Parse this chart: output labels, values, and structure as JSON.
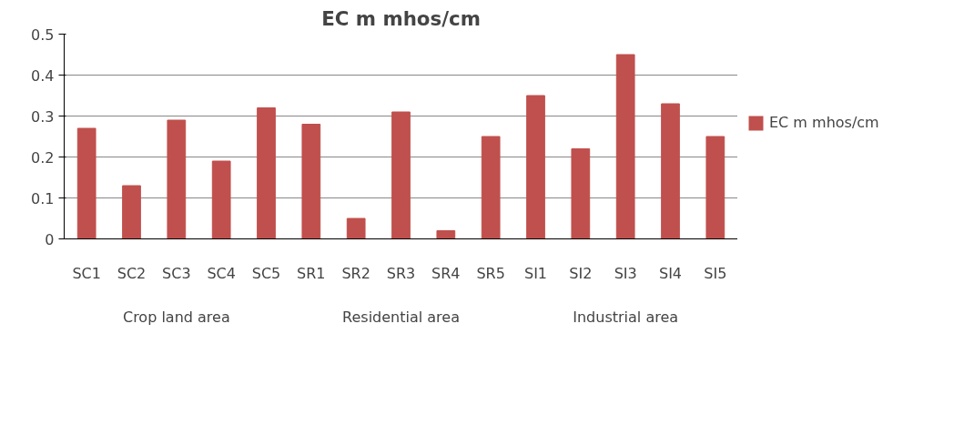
{
  "chart_data": {
    "type": "bar",
    "title": "EC m mhos/cm",
    "categories": [
      "SC1",
      "SC2",
      "SC3",
      "SC4",
      "SC5",
      "SR1",
      "SR2",
      "SR3",
      "SR4",
      "SR5",
      "SI1",
      "SI2",
      "SI3",
      "SI4",
      "SI5"
    ],
    "series": [
      {
        "name": "EC m mhos/cm",
        "color": "#c0504d",
        "values": [
          0.27,
          0.13,
          0.29,
          0.19,
          0.32,
          0.28,
          0.05,
          0.31,
          0.02,
          0.25,
          0.35,
          0.22,
          0.45,
          0.33,
          0.25
        ]
      }
    ],
    "annotations": [
      "Crop land area",
      "Residential area",
      "Industrial area"
    ],
    "ylim": [
      0,
      0.5
    ],
    "yticks": [
      0,
      0.1,
      0.2,
      0.3,
      0.4,
      0.5
    ],
    "grid": "y",
    "legend": "right"
  }
}
